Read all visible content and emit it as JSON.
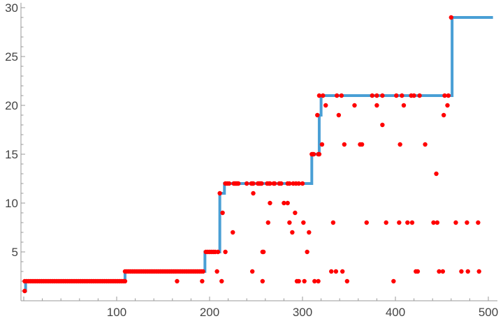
{
  "chart_data": {
    "type": "line",
    "title": "",
    "xlabel": "",
    "ylabel": "",
    "xlim": [
      -3,
      508
    ],
    "ylim": [
      0,
      30.5
    ],
    "grid": false,
    "x_ticks": [
      100,
      200,
      300,
      400,
      500
    ],
    "y_ticks": [
      5,
      10,
      15,
      20,
      25,
      30
    ],
    "colors": {
      "step_line": "#3f9ad3",
      "points": "#ff0000",
      "axis": "#999999"
    },
    "step_line": {
      "x": [
        0,
        2,
        109,
        195,
        211,
        216,
        310,
        318,
        320,
        461,
        505
      ],
      "y": [
        1,
        2,
        3,
        5,
        11,
        12,
        15,
        19,
        21,
        29,
        29
      ]
    },
    "points_by_y": {
      "1": [
        1
      ],
      "2": [
        1,
        3,
        5,
        7,
        9,
        11,
        13,
        15,
        17,
        19,
        21,
        23,
        25,
        27,
        29,
        31,
        33,
        35,
        37,
        39,
        41,
        43,
        45,
        47,
        49,
        51,
        53,
        55,
        57,
        59,
        61,
        63,
        65,
        67,
        69,
        71,
        73,
        75,
        77,
        79,
        81,
        83,
        85,
        87,
        89,
        91,
        93,
        95,
        97,
        99,
        101,
        103,
        105,
        107,
        109,
        165,
        192,
        213,
        257,
        294,
        296,
        302,
        313,
        317,
        348,
        398
      ],
      "3": [
        109,
        111,
        113,
        115,
        117,
        119,
        121,
        123,
        125,
        127,
        129,
        131,
        133,
        135,
        137,
        139,
        141,
        143,
        145,
        147,
        149,
        151,
        153,
        155,
        157,
        159,
        161,
        163,
        165,
        167,
        169,
        171,
        173,
        175,
        177,
        179,
        181,
        183,
        185,
        187,
        189,
        191,
        193,
        208,
        246,
        331,
        336,
        343,
        422,
        424,
        447,
        451,
        471,
        478,
        490
      ],
      "5": [
        196,
        198,
        200,
        202,
        204,
        206,
        209,
        217,
        257,
        258,
        305
      ],
      "7": [
        225,
        289,
        307
      ],
      "8": [
        263,
        286,
        301,
        333,
        369,
        390,
        404,
        413,
        418,
        441,
        445,
        465,
        477,
        489
      ],
      "9": [
        214,
        292
      ],
      "10": [
        265,
        280,
        284
      ],
      "11": [
        211,
        247
      ],
      "12": [
        217,
        219,
        221,
        226,
        227,
        228,
        229,
        230,
        231,
        240,
        245,
        246,
        247,
        252,
        253,
        254,
        255,
        256,
        262,
        264,
        265,
        269,
        270,
        275,
        277,
        284,
        286,
        290,
        293,
        296,
        300
      ],
      "13": [
        444
      ],
      "15": [
        310,
        311,
        312,
        317,
        318
      ],
      "16": [
        321,
        345,
        362,
        364,
        405,
        432
      ],
      "18": [
        386
      ],
      "19": [
        316,
        339,
        452
      ],
      "20": [
        325,
        356,
        380,
        409,
        456
      ],
      "21": [
        318,
        322,
        337,
        342,
        375,
        380,
        386,
        401,
        407,
        417,
        420,
        426,
        453,
        457
      ],
      "29": [
        460
      ]
    }
  }
}
